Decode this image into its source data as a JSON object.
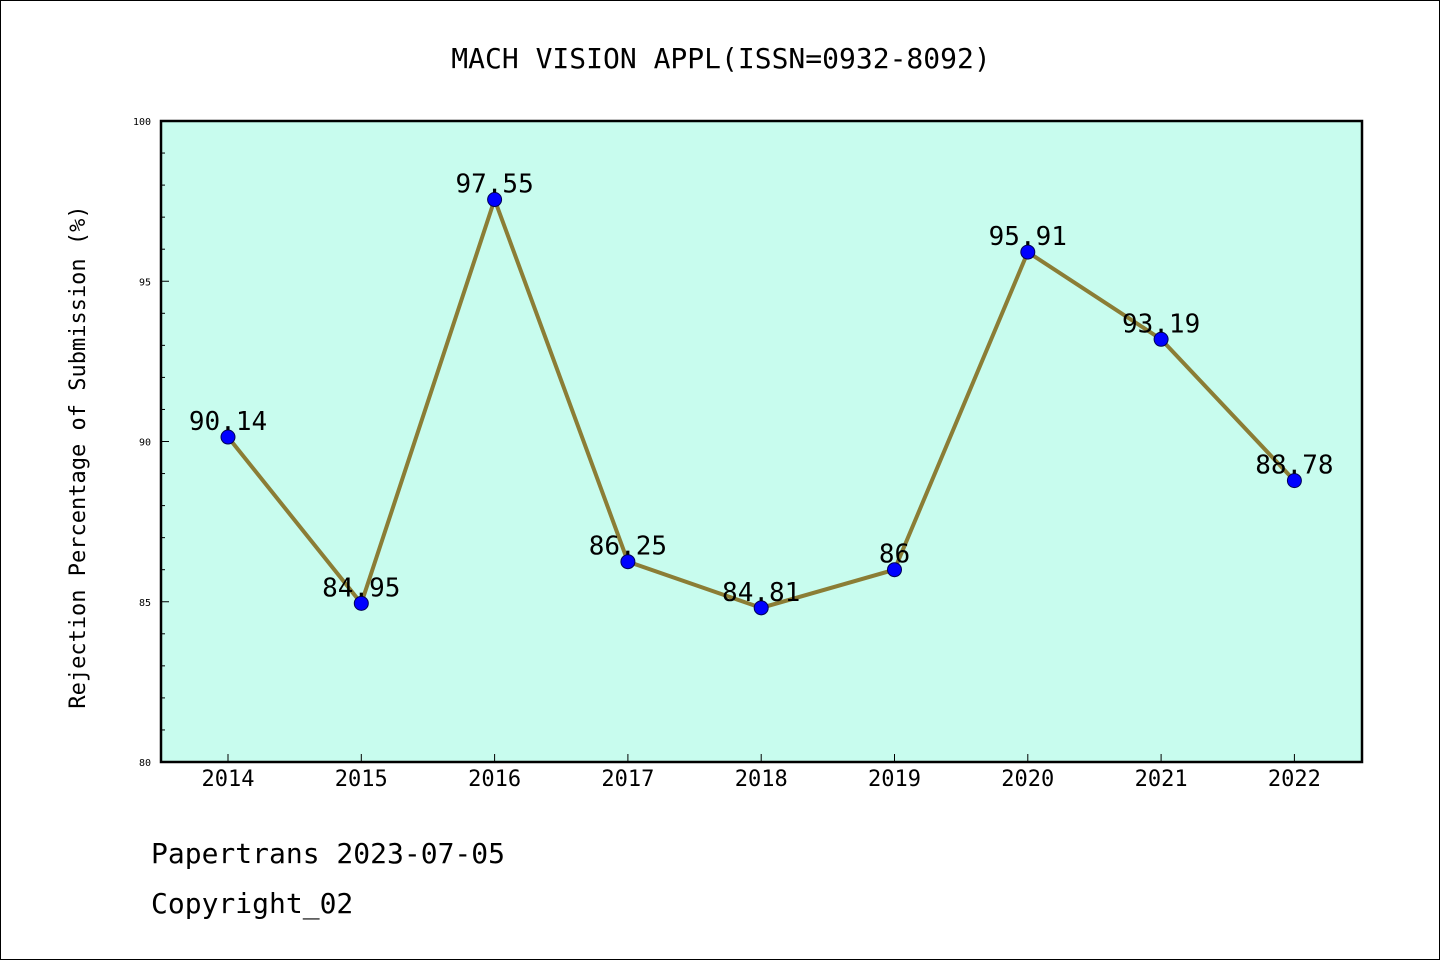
{
  "chart_data": {
    "type": "line",
    "title": "MACH VISION APPL(ISSN=0932-8092)",
    "ylabel": "Rejection Percentage of Submission (%)",
    "xlabel": "",
    "x": [
      "2014",
      "2015",
      "2016",
      "2017",
      "2018",
      "2019",
      "2020",
      "2021",
      "2022"
    ],
    "y": [
      90.14,
      84.95,
      97.55,
      86.25,
      84.81,
      86,
      95.91,
      93.19,
      88.78
    ],
    "data_labels": [
      "90.14",
      "84.95",
      "97.55",
      "86.25",
      "84.81",
      "86",
      "95.91",
      "93.19",
      "88.78"
    ],
    "ylim": [
      80,
      100
    ],
    "y_ticks": [
      80,
      85,
      90,
      95,
      100
    ],
    "y_tick_labels": [
      "80",
      "85",
      "90",
      "95",
      "100"
    ],
    "grid": false,
    "colors": {
      "plot_background": "#c8fcee",
      "line": "#8b7d35",
      "marker": "#0000ff"
    }
  },
  "footer": {
    "line1": "Papertrans 2023-07-05",
    "line2": "Copyright_02"
  }
}
